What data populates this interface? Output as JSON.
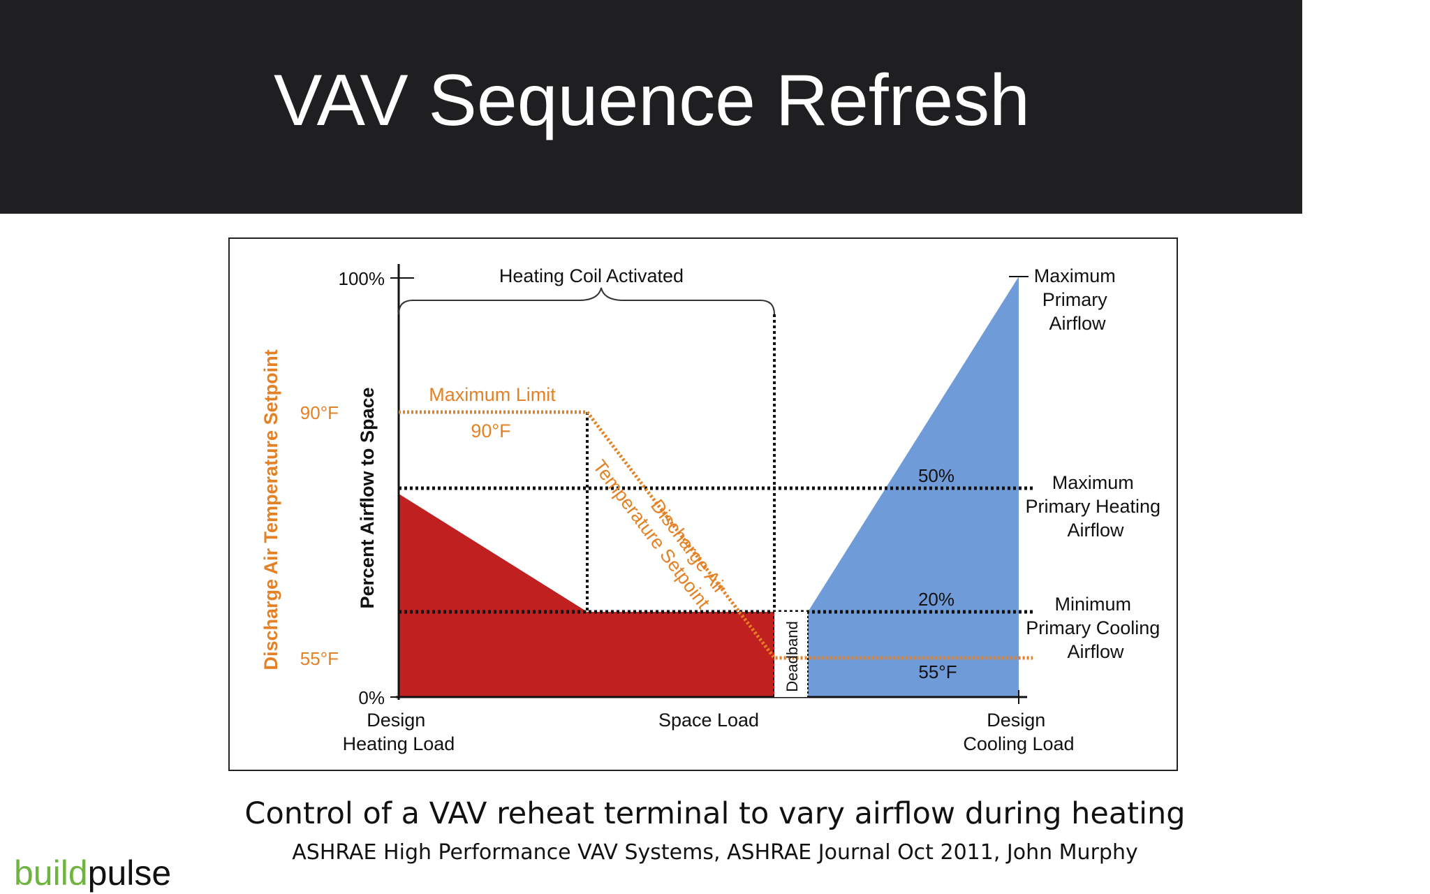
{
  "slide": {
    "title": "VAV Sequence Refresh",
    "caption": "Control of a VAV reheat terminal to vary airflow during heating",
    "source": "ASHRAE High Performance VAV Systems, ASHRAE Journal Oct 2011, John Murphy",
    "logo": {
      "part1": "build",
      "part2": "pulse",
      "color1": "#6fb43f",
      "color2": "#111111"
    }
  },
  "diagram": {
    "colors": {
      "heating": "#c0201f",
      "cooling": "#6f9bd9",
      "temperature": "#e58125",
      "lines": "#111111"
    },
    "y_axis_title": "Percent Airflow to Space",
    "y_ticks": {
      "top": "100%",
      "bottom": "0%"
    },
    "temp_axis_title": "Discharge Air Temperature Setpoint",
    "temp_ticks": {
      "high": "90°F",
      "low": "55°F"
    },
    "heating_coil_label": "Heating Coil Activated",
    "max_limit_label": "Maximum Limit",
    "max_limit_value": "90°F",
    "dat_setpoint_line1": "Discharge Air",
    "dat_setpoint_line2": "Temperature Setpoint",
    "deadband_label": "Deadband",
    "pct_50": "50%",
    "pct_20": "20%",
    "temp_55_right": "55°F",
    "right_labels": {
      "max_primary": [
        "Maximum",
        "Primary",
        "Airflow"
      ],
      "max_heating": [
        "Maximum",
        "Primary Heating",
        "Airflow"
      ],
      "min_cooling": [
        "Minimum",
        "Primary Cooling",
        "Airflow"
      ]
    },
    "x_labels": {
      "left": [
        "Design",
        "Heating Load"
      ],
      "middle": "Space Load",
      "right": [
        "Design",
        "Cooling Load"
      ]
    }
  }
}
